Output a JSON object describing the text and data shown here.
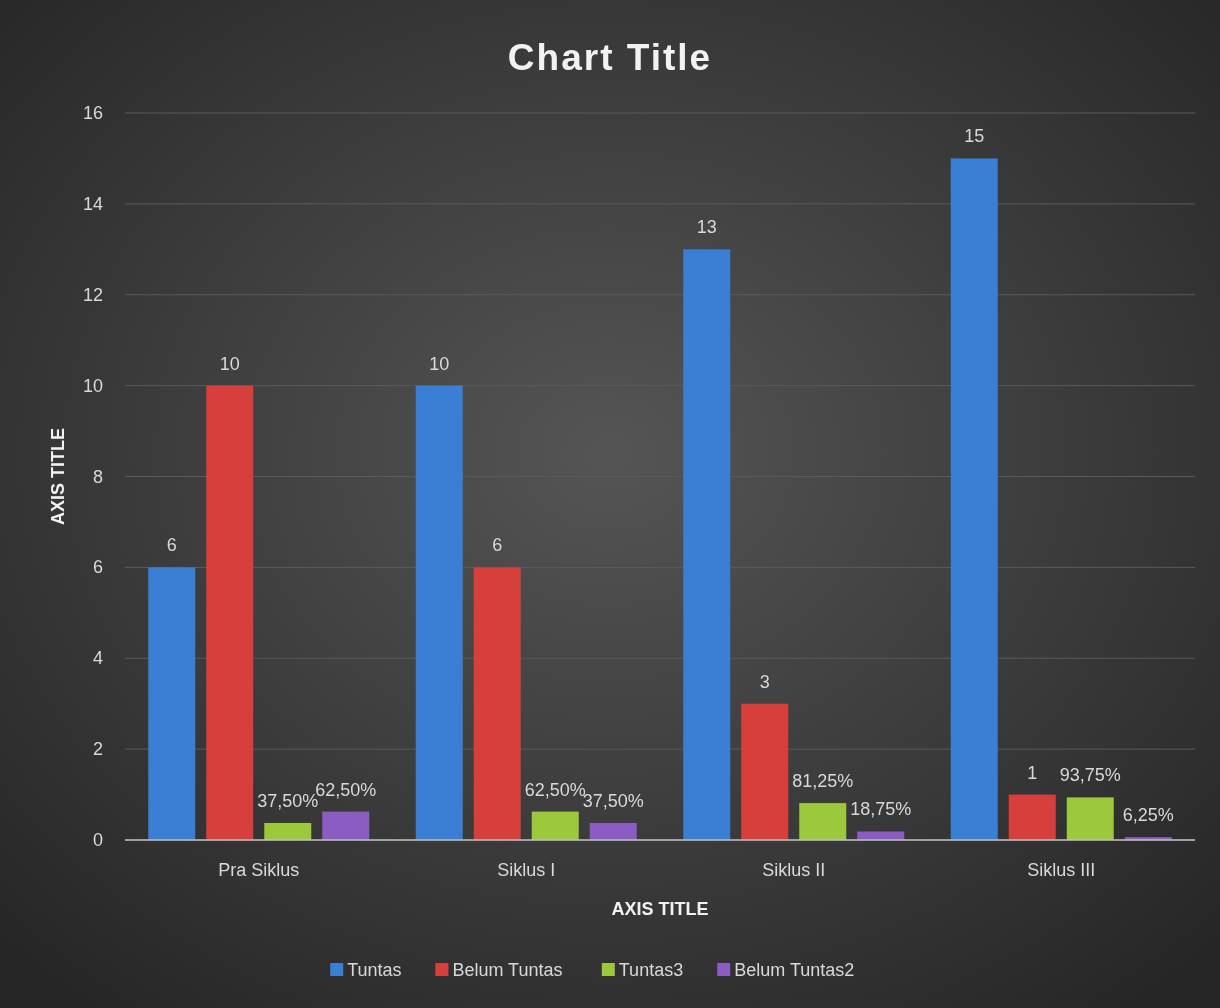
{
  "chart_data": {
    "type": "bar",
    "title": "Chart Title",
    "xlabel": "AXIS TITLE",
    "ylabel": "AXIS TITLE",
    "categories": [
      "Pra Siklus",
      "Siklus I",
      "Siklus II",
      "Siklus III"
    ],
    "series": [
      {
        "name": "Tuntas",
        "color": "#3b7fd4",
        "values": [
          6,
          10,
          13,
          15
        ],
        "value_labels": [
          "6",
          "10",
          "13",
          "15"
        ]
      },
      {
        "name": "Belum Tuntas",
        "color": "#d63f3c",
        "values": [
          10,
          6,
          3,
          1
        ],
        "value_labels": [
          "10",
          "6",
          "3",
          "1"
        ]
      },
      {
        "name": "Tuntas3",
        "color": "#9cc83b",
        "values": [
          0.375,
          0.625,
          0.8125,
          0.9375
        ],
        "value_labels": [
          "37,50%",
          "62,50%",
          "81,25%",
          "93,75%"
        ]
      },
      {
        "name": "Belum Tuntas2",
        "color": "#8b5cc2",
        "values": [
          0.625,
          0.375,
          0.1875,
          0.0625
        ],
        "value_labels": [
          "62,50%",
          "37,50%",
          "18,75%",
          "6,25%"
        ]
      }
    ],
    "ylim": [
      0,
      16
    ],
    "yticks": [
      0,
      2,
      4,
      6,
      8,
      10,
      12,
      14,
      16
    ],
    "grid": "y",
    "legend": "bottom"
  }
}
